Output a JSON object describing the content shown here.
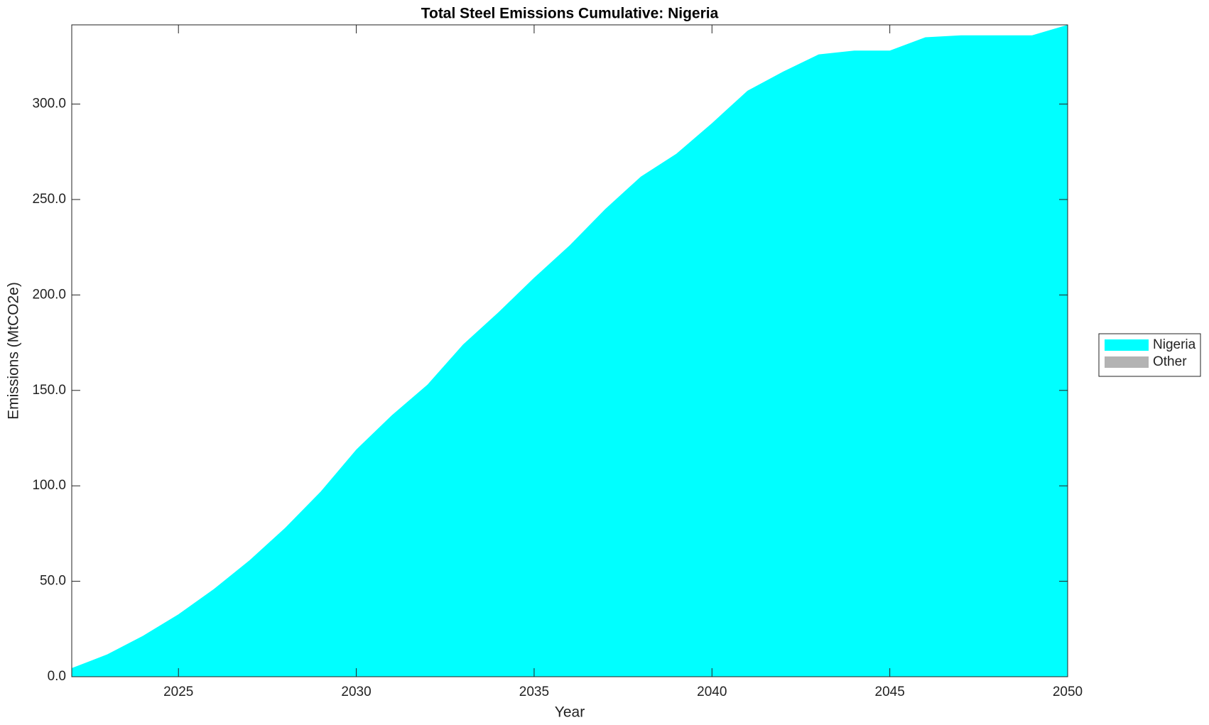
{
  "chart_data": {
    "type": "area",
    "title": "Total Steel Emissions Cumulative: Nigeria",
    "x_label": "Year",
    "y_label": "Emissions (MtCO2e)",
    "x": [
      2022,
      2023,
      2024,
      2025,
      2026,
      2027,
      2028,
      2029,
      2030,
      2031,
      2032,
      2033,
      2034,
      2035,
      2036,
      2037,
      2038,
      2039,
      2040,
      2041,
      2042,
      2043,
      2044,
      2045,
      2046,
      2047,
      2048,
      2049,
      2050
    ],
    "series": [
      {
        "name": "Nigeria",
        "color": "#00ffff",
        "values": [
          4.5,
          11.7,
          21.4,
          32.7,
          46,
          61,
          78,
          97,
          119,
          137,
          153,
          174,
          191,
          209,
          226,
          245,
          262,
          274,
          290,
          307,
          317,
          326,
          328,
          328,
          335,
          336,
          336,
          336,
          341.5
        ]
      },
      {
        "name": "Other",
        "color": "#b3b3b3",
        "values": [
          0,
          0,
          0,
          0,
          0,
          0,
          0,
          0,
          0,
          0,
          0,
          0,
          0,
          0,
          0,
          0,
          0,
          0,
          0,
          0,
          0,
          0,
          0,
          0,
          0,
          0,
          0,
          0,
          0
        ]
      }
    ],
    "stacked": true,
    "xlim": [
      2022,
      2050
    ],
    "xticks": [
      2025,
      2030,
      2035,
      2040,
      2045,
      2050
    ],
    "ylim": [
      0,
      341.5
    ],
    "yticks": [
      {
        "value": 0,
        "label": "0.0"
      },
      {
        "value": 50,
        "label": "50.0"
      },
      {
        "value": 100,
        "label": "100.0"
      },
      {
        "value": 150,
        "label": "150.0"
      },
      {
        "value": 200,
        "label": "200.0"
      },
      {
        "value": 250,
        "label": "250.0"
      },
      {
        "value": 300,
        "label": "300.0"
      }
    ],
    "grid": false,
    "legend": "right"
  }
}
